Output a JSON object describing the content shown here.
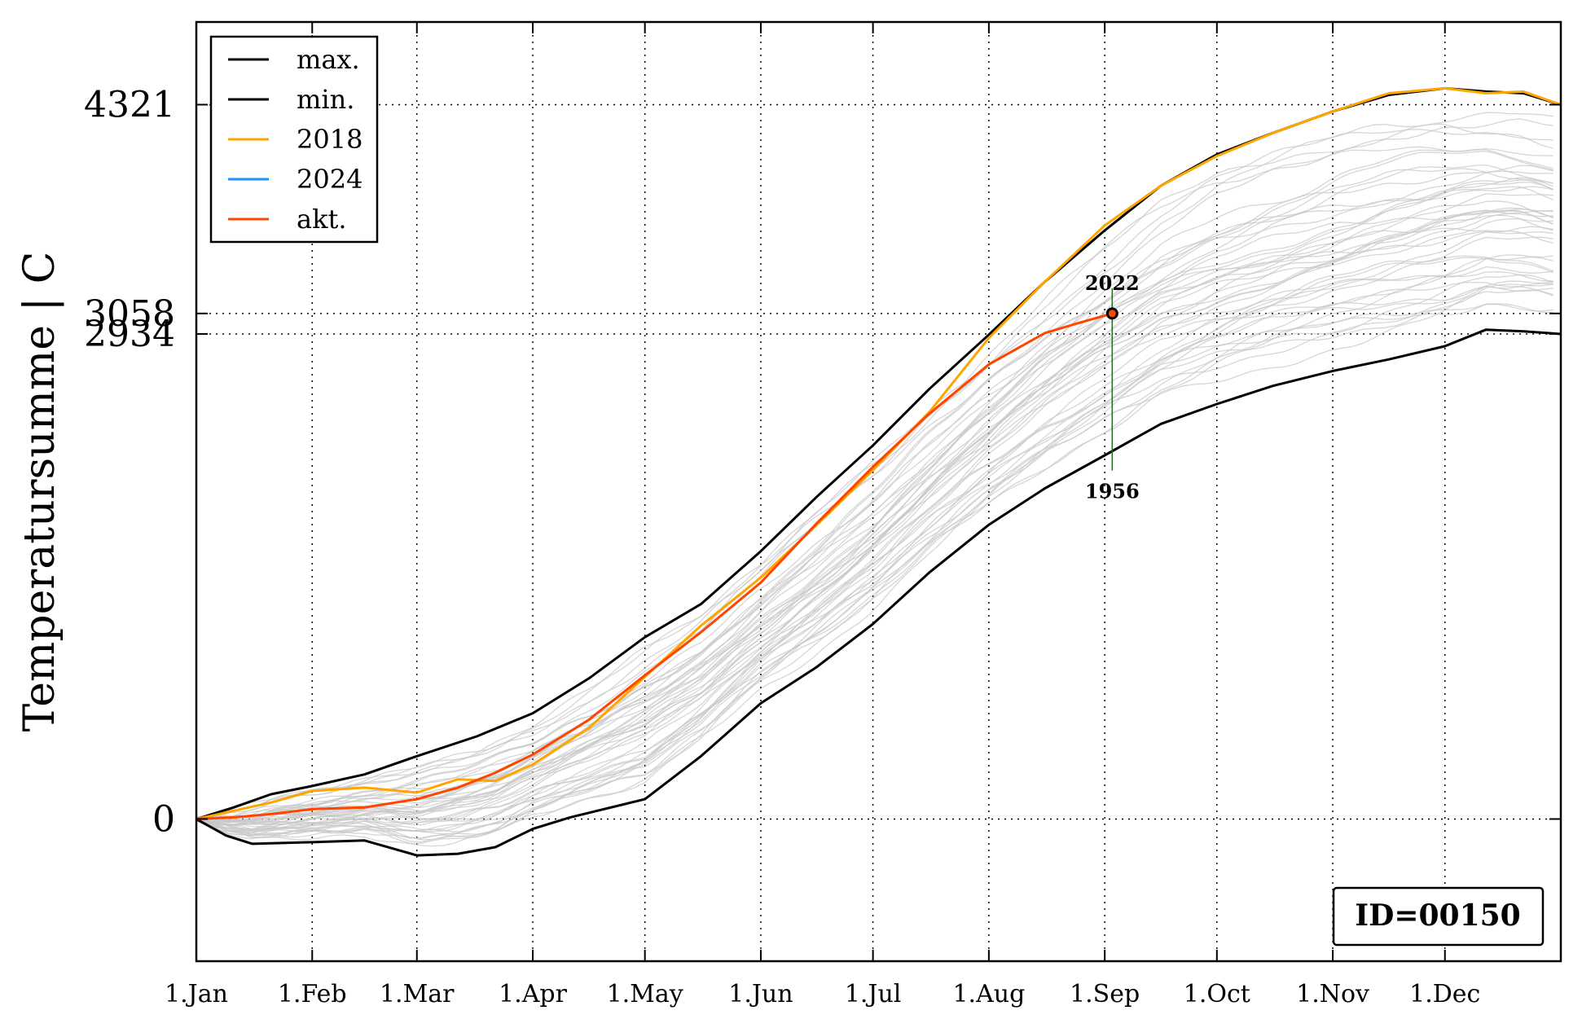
{
  "chart_data": {
    "type": "line",
    "ylabel": "Temperatursumme | C",
    "xlim": [
      0,
      365
    ],
    "ylim": [
      -860,
      4821
    ],
    "x_ticks": [
      {
        "label": "1.Jan",
        "day": 0
      },
      {
        "label": "1.Feb",
        "day": 31
      },
      {
        "label": "1.Mar",
        "day": 59
      },
      {
        "label": "1.Apr",
        "day": 90
      },
      {
        "label": "1.May",
        "day": 120
      },
      {
        "label": "1.Jun",
        "day": 151
      },
      {
        "label": "1.Jul",
        "day": 181
      },
      {
        "label": "1.Aug",
        "day": 212
      },
      {
        "label": "1.Sep",
        "day": 243
      },
      {
        "label": "1.Oct",
        "day": 273
      },
      {
        "label": "1.Nov",
        "day": 304
      },
      {
        "label": "1.Dec",
        "day": 334
      }
    ],
    "y_ticks": [
      {
        "label": "0",
        "value": 0
      },
      {
        "label": "2934",
        "value": 2934
      },
      {
        "label": "3058",
        "value": 3058
      },
      {
        "label": "4321",
        "value": 4321
      }
    ],
    "grid": "dotted",
    "legend_position": "top-left",
    "series": [
      {
        "name": "max.",
        "color": "#000000",
        "x": [
          0,
          10,
          20,
          31,
          45,
          59,
          75,
          90,
          105,
          120,
          135,
          151,
          166,
          181,
          196,
          212,
          227,
          243,
          258,
          273,
          288,
          304,
          319,
          334,
          345,
          355,
          365
        ],
        "y": [
          0,
          70,
          150,
          200,
          270,
          380,
          500,
          640,
          850,
          1100,
          1300,
          1620,
          1950,
          2260,
          2600,
          2930,
          3250,
          3560,
          3830,
          4020,
          4150,
          4280,
          4380,
          4420,
          4400,
          4390,
          4321
        ]
      },
      {
        "name": "min.",
        "color": "#000000",
        "x": [
          0,
          8,
          15,
          31,
          45,
          59,
          70,
          80,
          90,
          100,
          120,
          135,
          151,
          166,
          181,
          196,
          212,
          227,
          243,
          258,
          273,
          288,
          304,
          319,
          334,
          345,
          355,
          365
        ],
        "y": [
          0,
          -100,
          -150,
          -140,
          -130,
          -220,
          -210,
          -170,
          -60,
          10,
          120,
          380,
          700,
          920,
          1180,
          1490,
          1780,
          2000,
          2200,
          2390,
          2510,
          2620,
          2710,
          2780,
          2860,
          2960,
          2950,
          2934
        ]
      },
      {
        "name": "2018",
        "color": "#ffa500",
        "x": [
          0,
          10,
          20,
          31,
          45,
          59,
          70,
          80,
          90,
          105,
          120,
          135,
          151,
          166,
          181,
          196,
          212,
          227,
          243,
          258,
          273,
          288,
          304,
          319,
          334,
          345,
          355,
          365
        ],
        "y": [
          0,
          50,
          100,
          170,
          190,
          160,
          240,
          230,
          330,
          550,
          860,
          1170,
          1460,
          1780,
          2110,
          2460,
          2910,
          3250,
          3590,
          3830,
          4010,
          4150,
          4280,
          4390,
          4420,
          4390,
          4400,
          4321
        ]
      },
      {
        "name": "2024",
        "color": "#1e90ff",
        "x": [],
        "y": []
      },
      {
        "name": "akt.",
        "color": "#ff4500",
        "x": [
          0,
          10,
          20,
          31,
          45,
          59,
          70,
          80,
          90,
          105,
          120,
          135,
          151,
          166,
          181,
          196,
          212,
          227,
          236,
          245
        ],
        "y": [
          0,
          10,
          30,
          60,
          70,
          120,
          190,
          280,
          390,
          600,
          870,
          1130,
          1430,
          1790,
          2130,
          2450,
          2750,
          2940,
          3000,
          3058
        ]
      }
    ],
    "background_series_color": "#c8c8c8",
    "current_point": {
      "x": 245,
      "y": 3058
    },
    "annotations": [
      {
        "text": "2022",
        "x": 245,
        "y": 3250
      },
      {
        "text": "1956",
        "x": 245,
        "y": 2000
      }
    ],
    "id_label": "ID=00150"
  }
}
